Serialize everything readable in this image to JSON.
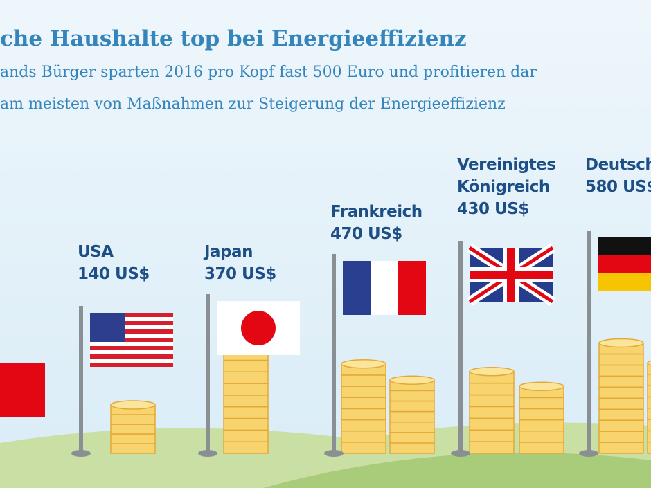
{
  "chart_data": {
    "type": "pictograph",
    "title": "che Haushalte top bei Energieeffizienz",
    "subtitle": [
      "ands Bürger sparten 2016 pro Kopf fast 500 Euro und profitieren dar",
      "am meisten von Maßnahmen zur Steigerung der Energieeffizienz"
    ],
    "categories": [
      "USA",
      "Japan",
      "Frankreich",
      "Vereinigtes Königreich",
      "Deutschland"
    ],
    "values": [
      140,
      370,
      470,
      430,
      580
    ],
    "value_labels": [
      "140 US$",
      "370 US$",
      "470 US$",
      "430 US$",
      "580 US$"
    ],
    "color": "#f7d46e"
  }
}
